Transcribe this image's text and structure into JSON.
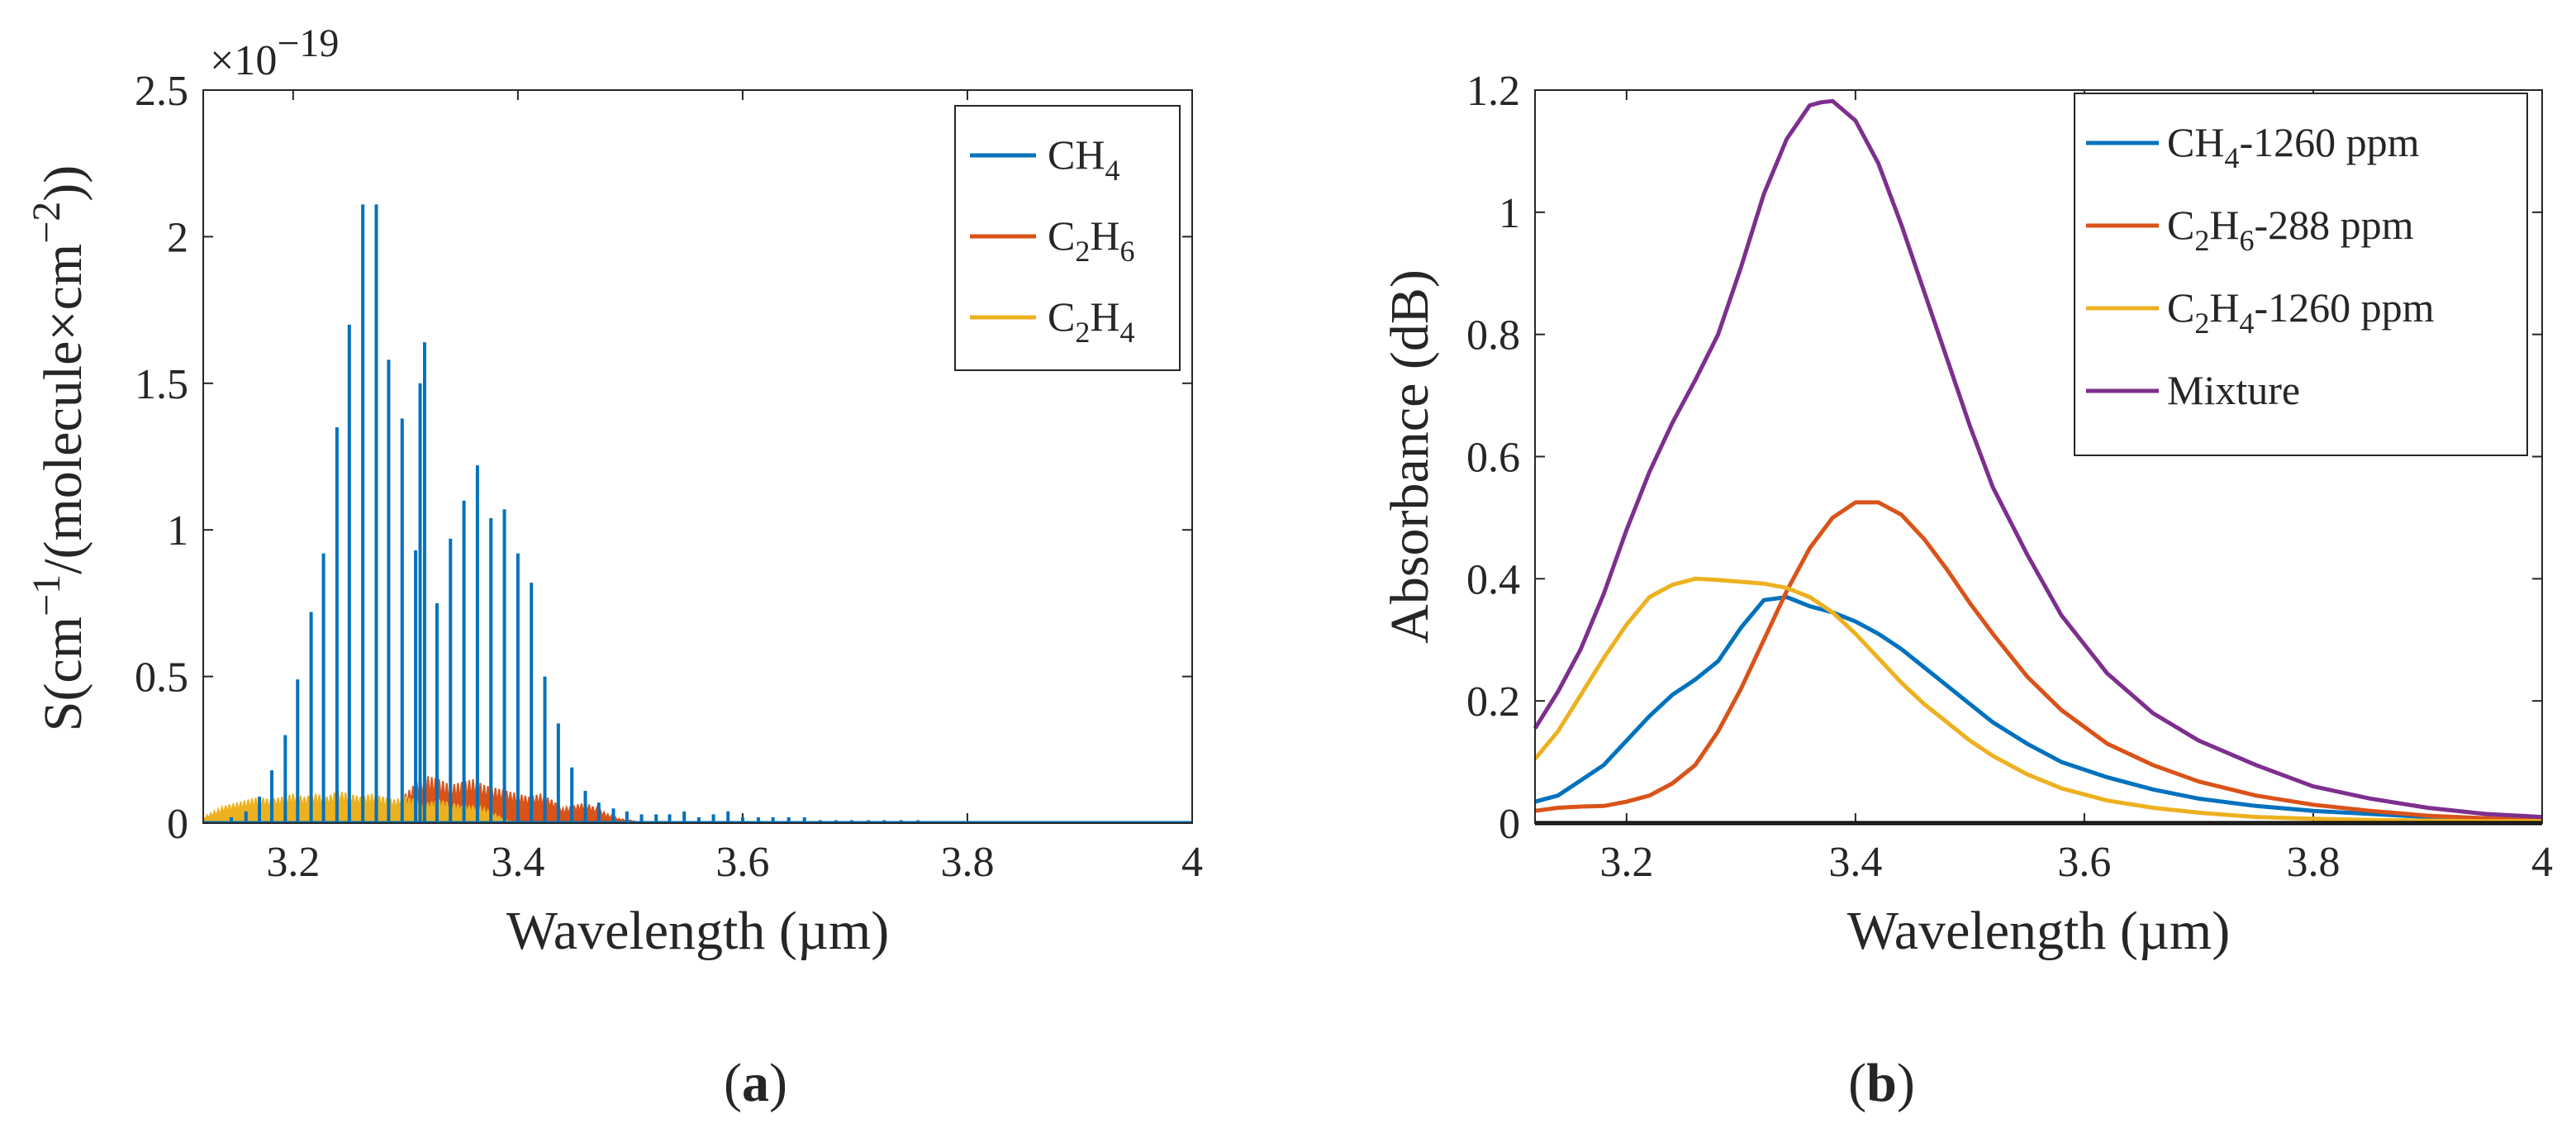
{
  "chart_data": [
    {
      "panel": "a",
      "type": "line",
      "title": "",
      "xlabel": "Wavelength (µm)",
      "ylabel_parts": [
        "S(cm",
        "−1",
        "/(molecule×cm",
        "−2",
        "))"
      ],
      "xlim": [
        3.12,
        4.0
      ],
      "ylim": [
        0,
        2.5
      ],
      "y_multiplier": "×10",
      "y_multiplier_exp": "−19",
      "xticks": [
        3.2,
        3.4,
        3.6,
        3.8,
        4.0
      ],
      "xtick_labels": [
        "3.2",
        "3.4",
        "3.6",
        "3.8",
        "4"
      ],
      "yticks": [
        0,
        0.5,
        1,
        1.5,
        2,
        2.5
      ],
      "ytick_labels": [
        "0",
        "0.5",
        "1",
        "1.5",
        "2",
        "2.5"
      ],
      "legend_position": "top-right",
      "series": [
        {
          "name": "CH4",
          "legend_base": "CH",
          "legend_sub1": "4",
          "color": "#0072BD",
          "kind": "stick",
          "lines": [
            {
              "x": 3.145,
              "y": 0.02
            },
            {
              "x": 3.158,
              "y": 0.04
            },
            {
              "x": 3.17,
              "y": 0.09
            },
            {
              "x": 3.181,
              "y": 0.18
            },
            {
              "x": 3.193,
              "y": 0.3
            },
            {
              "x": 3.204,
              "y": 0.49
            },
            {
              "x": 3.216,
              "y": 0.72
            },
            {
              "x": 3.227,
              "y": 0.92
            },
            {
              "x": 3.239,
              "y": 1.35
            },
            {
              "x": 3.25,
              "y": 1.7
            },
            {
              "x": 3.262,
              "y": 2.11
            },
            {
              "x": 3.274,
              "y": 2.11
            },
            {
              "x": 3.285,
              "y": 1.58
            },
            {
              "x": 3.297,
              "y": 1.38
            },
            {
              "x": 3.309,
              "y": 0.93
            },
            {
              "x": 3.313,
              "y": 1.5
            },
            {
              "x": 3.317,
              "y": 1.64
            },
            {
              "x": 3.328,
              "y": 0.75
            },
            {
              "x": 3.34,
              "y": 0.97
            },
            {
              "x": 3.352,
              "y": 1.1
            },
            {
              "x": 3.364,
              "y": 1.22
            },
            {
              "x": 3.376,
              "y": 1.04
            },
            {
              "x": 3.388,
              "y": 1.07
            },
            {
              "x": 3.4,
              "y": 0.92
            },
            {
              "x": 3.412,
              "y": 0.82
            },
            {
              "x": 3.424,
              "y": 0.5
            },
            {
              "x": 3.436,
              "y": 0.34
            },
            {
              "x": 3.448,
              "y": 0.19
            },
            {
              "x": 3.46,
              "y": 0.11
            },
            {
              "x": 3.472,
              "y": 0.07
            },
            {
              "x": 3.485,
              "y": 0.05
            },
            {
              "x": 3.497,
              "y": 0.04
            },
            {
              "x": 3.51,
              "y": 0.03
            },
            {
              "x": 3.523,
              "y": 0.03
            },
            {
              "x": 3.535,
              "y": 0.03
            },
            {
              "x": 3.548,
              "y": 0.04
            },
            {
              "x": 3.561,
              "y": 0.02
            },
            {
              "x": 3.574,
              "y": 0.03
            },
            {
              "x": 3.587,
              "y": 0.04
            },
            {
              "x": 3.6,
              "y": 0.02
            },
            {
              "x": 3.614,
              "y": 0.02
            },
            {
              "x": 3.627,
              "y": 0.02
            },
            {
              "x": 3.641,
              "y": 0.02
            },
            {
              "x": 3.655,
              "y": 0.02
            },
            {
              "x": 3.669,
              "y": 0.01
            },
            {
              "x": 3.683,
              "y": 0.01
            },
            {
              "x": 3.697,
              "y": 0.01
            },
            {
              "x": 3.712,
              "y": 0.01
            },
            {
              "x": 3.726,
              "y": 0.01
            },
            {
              "x": 3.741,
              "y": 0.01
            },
            {
              "x": 3.756,
              "y": 0.01
            },
            {
              "x": 3.771,
              "y": 0.005
            },
            {
              "x": 3.786,
              "y": 0.005
            },
            {
              "x": 3.801,
              "y": 0.005
            },
            {
              "x": 3.816,
              "y": 0.005
            },
            {
              "x": 3.832,
              "y": 0.005
            },
            {
              "x": 3.848,
              "y": 0.005
            },
            {
              "x": 3.864,
              "y": 0.005
            },
            {
              "x": 3.88,
              "y": 0.005
            },
            {
              "x": 3.896,
              "y": 0.005
            },
            {
              "x": 3.912,
              "y": 0.005
            },
            {
              "x": 3.929,
              "y": 0.005
            },
            {
              "x": 3.946,
              "y": 0.005
            },
            {
              "x": 3.963,
              "y": 0.005
            },
            {
              "x": 3.98,
              "y": 0.005
            },
            {
              "x": 3.997,
              "y": 0.005
            }
          ]
        },
        {
          "name": "C2H6",
          "legend_base": "C",
          "legend_sub1": "2",
          "legend_mid": "H",
          "legend_sub2": "6",
          "color": "#D95319",
          "kind": "band",
          "envelope": [
            [
              3.28,
              0.0
            ],
            [
              3.29,
              0.06
            ],
            [
              3.3,
              0.1
            ],
            [
              3.31,
              0.14
            ],
            [
              3.32,
              0.16
            ],
            [
              3.33,
              0.15
            ],
            [
              3.34,
              0.13
            ],
            [
              3.35,
              0.14
            ],
            [
              3.36,
              0.15
            ],
            [
              3.37,
              0.13
            ],
            [
              3.38,
              0.12
            ],
            [
              3.39,
              0.11
            ],
            [
              3.4,
              0.1
            ],
            [
              3.41,
              0.09
            ],
            [
              3.42,
              0.1
            ],
            [
              3.43,
              0.08
            ],
            [
              3.44,
              0.05
            ],
            [
              3.45,
              0.06
            ],
            [
              3.46,
              0.07
            ],
            [
              3.47,
              0.05
            ],
            [
              3.48,
              0.03
            ],
            [
              3.49,
              0.015
            ],
            [
              3.5,
              0.01
            ],
            [
              3.51,
              0.0
            ]
          ]
        },
        {
          "name": "C2H4",
          "legend_base": "C",
          "legend_sub1": "2",
          "legend_mid": "H",
          "legend_sub2": "4",
          "color": "#EDB120",
          "kind": "band",
          "envelope": [
            [
              3.12,
              0.02
            ],
            [
              3.13,
              0.04
            ],
            [
              3.14,
              0.06
            ],
            [
              3.15,
              0.07
            ],
            [
              3.16,
              0.08
            ],
            [
              3.17,
              0.09
            ],
            [
              3.18,
              0.08
            ],
            [
              3.19,
              0.09
            ],
            [
              3.2,
              0.1
            ],
            [
              3.21,
              0.09
            ],
            [
              3.22,
              0.1
            ],
            [
              3.23,
              0.09
            ],
            [
              3.24,
              0.11
            ],
            [
              3.25,
              0.1
            ],
            [
              3.26,
              0.09
            ],
            [
              3.27,
              0.1
            ],
            [
              3.28,
              0.09
            ],
            [
              3.29,
              0.08
            ],
            [
              3.3,
              0.09
            ],
            [
              3.31,
              0.08
            ],
            [
              3.32,
              0.07
            ],
            [
              3.33,
              0.08
            ],
            [
              3.34,
              0.07
            ],
            [
              3.35,
              0.06
            ],
            [
              3.36,
              0.06
            ],
            [
              3.37,
              0.05
            ],
            [
              3.38,
              0.03
            ],
            [
              3.39,
              0.01
            ],
            [
              3.4,
              0.0
            ]
          ]
        }
      ]
    },
    {
      "panel": "b",
      "type": "line",
      "title": "",
      "xlabel": "Wavelength (µm)",
      "ylabel": "Absorbance (dB)",
      "xlim": [
        3.12,
        4.0
      ],
      "ylim": [
        0,
        1.2
      ],
      "xticks": [
        3.2,
        3.4,
        3.6,
        3.8,
        4.0
      ],
      "xtick_labels": [
        "3.2",
        "3.4",
        "3.6",
        "3.8",
        "4"
      ],
      "yticks": [
        0,
        0.2,
        0.4,
        0.6,
        0.8,
        1.0,
        1.2
      ],
      "ytick_labels": [
        "0",
        "0.2",
        "0.4",
        "0.6",
        "0.8",
        "1",
        "1.2"
      ],
      "legend_position": "top-right",
      "series": [
        {
          "name": "CH4-1260 ppm",
          "legend_base": "CH",
          "legend_sub1": "4",
          "legend_tail": "-1260 ppm",
          "color": "#0072BD",
          "x": [
            3.12,
            3.14,
            3.16,
            3.18,
            3.2,
            3.22,
            3.24,
            3.26,
            3.28,
            3.3,
            3.32,
            3.34,
            3.36,
            3.38,
            3.4,
            3.42,
            3.44,
            3.46,
            3.48,
            3.5,
            3.52,
            3.55,
            3.58,
            3.62,
            3.66,
            3.7,
            3.75,
            3.8,
            3.85,
            3.9,
            3.95,
            4.0
          ],
          "y": [
            0.035,
            0.045,
            0.07,
            0.095,
            0.135,
            0.175,
            0.21,
            0.235,
            0.265,
            0.32,
            0.365,
            0.37,
            0.355,
            0.345,
            0.33,
            0.31,
            0.285,
            0.255,
            0.225,
            0.195,
            0.165,
            0.13,
            0.1,
            0.075,
            0.055,
            0.04,
            0.028,
            0.02,
            0.015,
            0.01,
            0.008,
            0.007
          ]
        },
        {
          "name": "C2H6-288 ppm",
          "legend_base": "C",
          "legend_sub1": "2",
          "legend_mid": "H",
          "legend_sub2": "6",
          "legend_tail": "-288 ppm",
          "color": "#D95319",
          "x": [
            3.12,
            3.14,
            3.16,
            3.18,
            3.2,
            3.22,
            3.24,
            3.26,
            3.28,
            3.3,
            3.32,
            3.34,
            3.36,
            3.38,
            3.4,
            3.42,
            3.44,
            3.46,
            3.48,
            3.5,
            3.52,
            3.55,
            3.58,
            3.62,
            3.66,
            3.7,
            3.75,
            3.8,
            3.85,
            3.9,
            3.95,
            4.0
          ],
          "y": [
            0.02,
            0.025,
            0.027,
            0.028,
            0.035,
            0.045,
            0.065,
            0.095,
            0.15,
            0.22,
            0.3,
            0.38,
            0.45,
            0.5,
            0.525,
            0.525,
            0.505,
            0.465,
            0.415,
            0.36,
            0.31,
            0.24,
            0.185,
            0.13,
            0.095,
            0.068,
            0.045,
            0.03,
            0.02,
            0.012,
            0.008,
            0.006
          ]
        },
        {
          "name": "C2H4-1260 ppm",
          "legend_base": "C",
          "legend_sub1": "2",
          "legend_mid": "H",
          "legend_sub2": "4",
          "legend_tail": "-1260 ppm",
          "color": "#EDB120",
          "x": [
            3.12,
            3.14,
            3.16,
            3.18,
            3.2,
            3.22,
            3.24,
            3.26,
            3.28,
            3.3,
            3.32,
            3.34,
            3.36,
            3.38,
            3.4,
            3.42,
            3.44,
            3.46,
            3.48,
            3.5,
            3.52,
            3.55,
            3.58,
            3.62,
            3.66,
            3.7,
            3.75,
            3.8,
            3.85,
            3.9,
            3.95,
            4.0
          ],
          "y": [
            0.105,
            0.15,
            0.21,
            0.27,
            0.325,
            0.37,
            0.39,
            0.4,
            0.398,
            0.395,
            0.392,
            0.385,
            0.37,
            0.345,
            0.31,
            0.27,
            0.23,
            0.195,
            0.165,
            0.135,
            0.11,
            0.08,
            0.057,
            0.037,
            0.025,
            0.017,
            0.01,
            0.007,
            0.005,
            0.004,
            0.003,
            0.003
          ]
        },
        {
          "name": "Mixture",
          "legend_base": "Mixture",
          "color": "#7E2F8E",
          "x": [
            3.12,
            3.14,
            3.16,
            3.18,
            3.2,
            3.22,
            3.24,
            3.26,
            3.28,
            3.3,
            3.32,
            3.34,
            3.36,
            3.37,
            3.38,
            3.4,
            3.42,
            3.44,
            3.46,
            3.48,
            3.5,
            3.52,
            3.55,
            3.58,
            3.62,
            3.66,
            3.7,
            3.75,
            3.8,
            3.85,
            3.9,
            3.95,
            4.0
          ],
          "y": [
            0.155,
            0.215,
            0.285,
            0.375,
            0.48,
            0.575,
            0.655,
            0.725,
            0.8,
            0.91,
            1.03,
            1.12,
            1.175,
            1.18,
            1.182,
            1.15,
            1.08,
            0.98,
            0.87,
            0.76,
            0.65,
            0.55,
            0.44,
            0.34,
            0.245,
            0.18,
            0.135,
            0.095,
            0.06,
            0.04,
            0.025,
            0.015,
            0.01
          ]
        }
      ]
    }
  ],
  "panel_labels": [
    "(a)",
    "(b)"
  ],
  "axis_color": "#262626"
}
